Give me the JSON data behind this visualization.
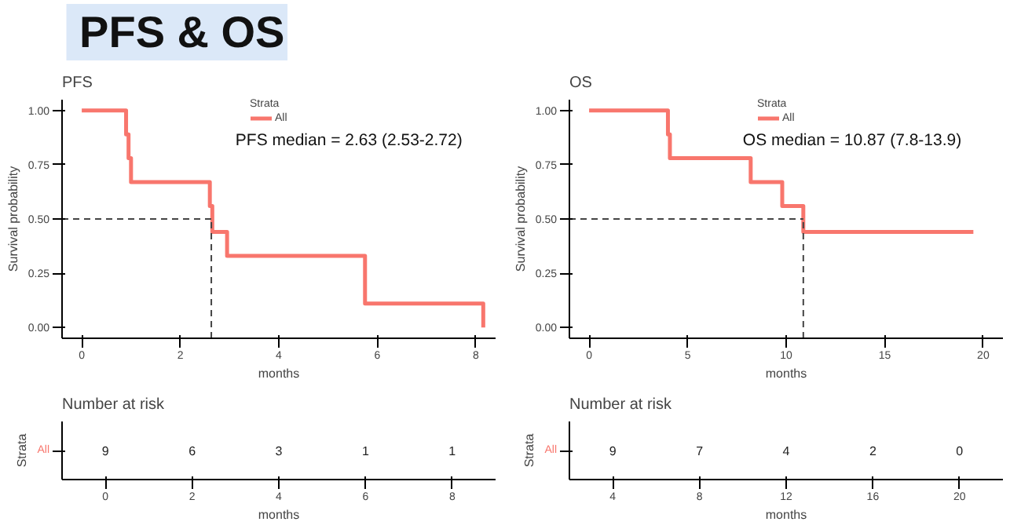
{
  "chart_data": [
    {
      "type": "other",
      "title": "PFS & OS"
    },
    {
      "type": "step",
      "title": "PFS",
      "xlabel": "months",
      "ylabel": "Survival probability",
      "legend_title": "Strata",
      "legend": "top",
      "series": [
        {
          "name": "All",
          "color": "#f8766d",
          "x": [
            0,
            0.9,
            0.95,
            1.0,
            2.6,
            2.65,
            2.95,
            5.75,
            8.15
          ],
          "values": [
            1,
            0.89,
            0.78,
            0.67,
            0.56,
            0.44,
            0.33,
            0.11,
            0
          ]
        }
      ],
      "xlim": [
        -0.4,
        8.4
      ],
      "xticks": [
        0,
        2,
        4,
        6,
        8
      ],
      "ylim": [
        -0.05,
        1.05
      ],
      "yticks": [
        {
          "value": 0,
          "label": "0.00"
        },
        {
          "value": 0.25,
          "label": "0.25"
        },
        {
          "value": 0.5,
          "label": "0.50"
        },
        {
          "value": 0.75,
          "label": "0.75"
        },
        {
          "value": 1,
          "label": "1.00"
        }
      ],
      "ref_lines": [
        {
          "axis": "y",
          "value": 0.5,
          "line_style": "dashed",
          "color": "#444444"
        },
        {
          "axis": "x",
          "value": 2.63,
          "line_style": "dashed",
          "color": "#444444"
        }
      ],
      "annotations": [
        "PFS median = 2.63 (2.53-2.72)"
      ],
      "grid": false
    },
    {
      "type": "heatmap",
      "title": "Number at risk",
      "xlabel": "months",
      "ylabel": "Strata",
      "categories": [
        "0",
        "2",
        "4",
        "6",
        "8"
      ],
      "y_categories": [
        "All"
      ],
      "color": "#f8766d",
      "cells": [
        [
          9,
          6,
          3,
          1,
          1
        ]
      ],
      "data_labels": true
    },
    {
      "type": "step",
      "title": "OS",
      "xlabel": "months",
      "ylabel": "Survival probability",
      "legend_title": "Strata",
      "legend": "top",
      "series": [
        {
          "name": "All",
          "color": "#f8766d",
          "x": [
            0,
            4.0,
            4.1,
            8.2,
            9.8,
            10.87,
            19.5
          ],
          "values": [
            1,
            0.89,
            0.78,
            0.67,
            0.56,
            0.44,
            0.44
          ]
        }
      ],
      "xlim": [
        -1,
        21
      ],
      "xticks": [
        0,
        5,
        10,
        15,
        20
      ],
      "ylim": [
        -0.05,
        1.05
      ],
      "yticks": [
        {
          "value": 0,
          "label": "0.00"
        },
        {
          "value": 0.25,
          "label": "0.25"
        },
        {
          "value": 0.5,
          "label": "0.50"
        },
        {
          "value": 0.75,
          "label": "0.75"
        },
        {
          "value": 1,
          "label": "1.00"
        }
      ],
      "ref_lines": [
        {
          "axis": "y",
          "value": 0.5,
          "line_style": "dashed",
          "color": "#444444"
        },
        {
          "axis": "x",
          "value": 10.87,
          "line_style": "dashed",
          "color": "#444444"
        }
      ],
      "annotations": [
        "OS median = 10.87 (7.8-13.9)"
      ],
      "grid": false
    },
    {
      "type": "heatmap",
      "title": "Number at risk",
      "xlabel": "months",
      "ylabel": "Strata",
      "categories": [
        "4",
        "8",
        "12",
        "16",
        "20"
      ],
      "y_categories": [
        "All"
      ],
      "color": "#f8766d",
      "cells": [
        [
          9,
          7,
          4,
          2,
          0
        ]
      ],
      "data_labels": true
    }
  ]
}
